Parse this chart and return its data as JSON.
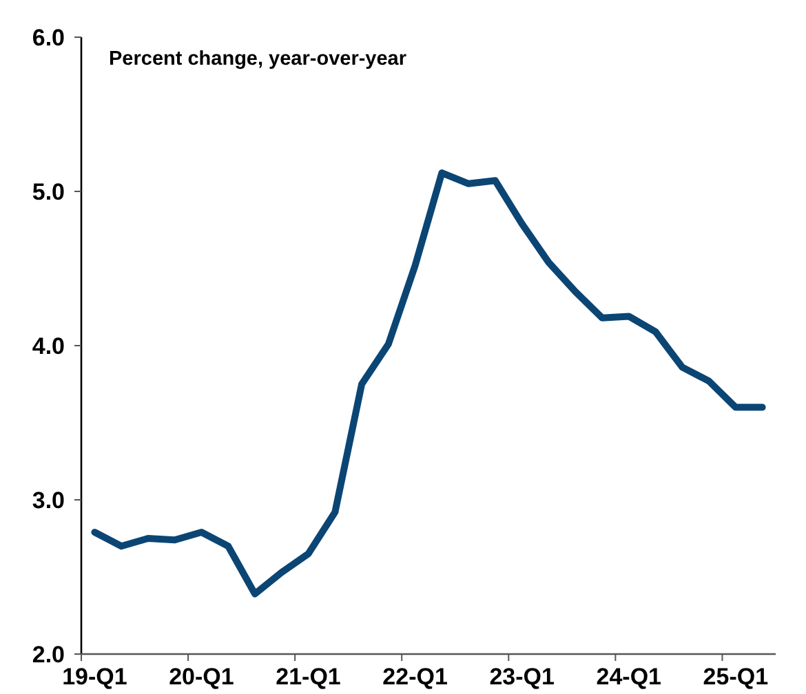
{
  "chart_data": {
    "type": "line",
    "title": "Percent change, year-over-year",
    "categories": [
      "19-Q1",
      null,
      null,
      null,
      "20-Q1",
      null,
      null,
      null,
      "21-Q1",
      null,
      null,
      null,
      "22-Q1",
      null,
      null,
      null,
      "23-Q1",
      null,
      null,
      null,
      "24-Q1",
      null,
      null,
      null,
      "25-Q1",
      null
    ],
    "series": [
      {
        "color": "#0b4574",
        "values": [
          2.79,
          2.7,
          2.75,
          2.74,
          2.79,
          2.7,
          2.39,
          2.53,
          2.65,
          2.92,
          3.75,
          4.01,
          4.52,
          5.12,
          5.05,
          5.07,
          4.79,
          4.54,
          4.35,
          4.18,
          4.19,
          4.09,
          3.86,
          3.77,
          3.6,
          3.6
        ]
      }
    ],
    "ylim": [
      2,
      6
    ],
    "yticks": [
      {
        "value": 2,
        "label": "2.0"
      },
      {
        "value": 3,
        "label": "3.0"
      },
      {
        "value": 4,
        "label": "4.0"
      },
      {
        "value": 5,
        "label": "5.0"
      },
      {
        "value": 6,
        "label": "6.0"
      }
    ],
    "grid": false
  }
}
